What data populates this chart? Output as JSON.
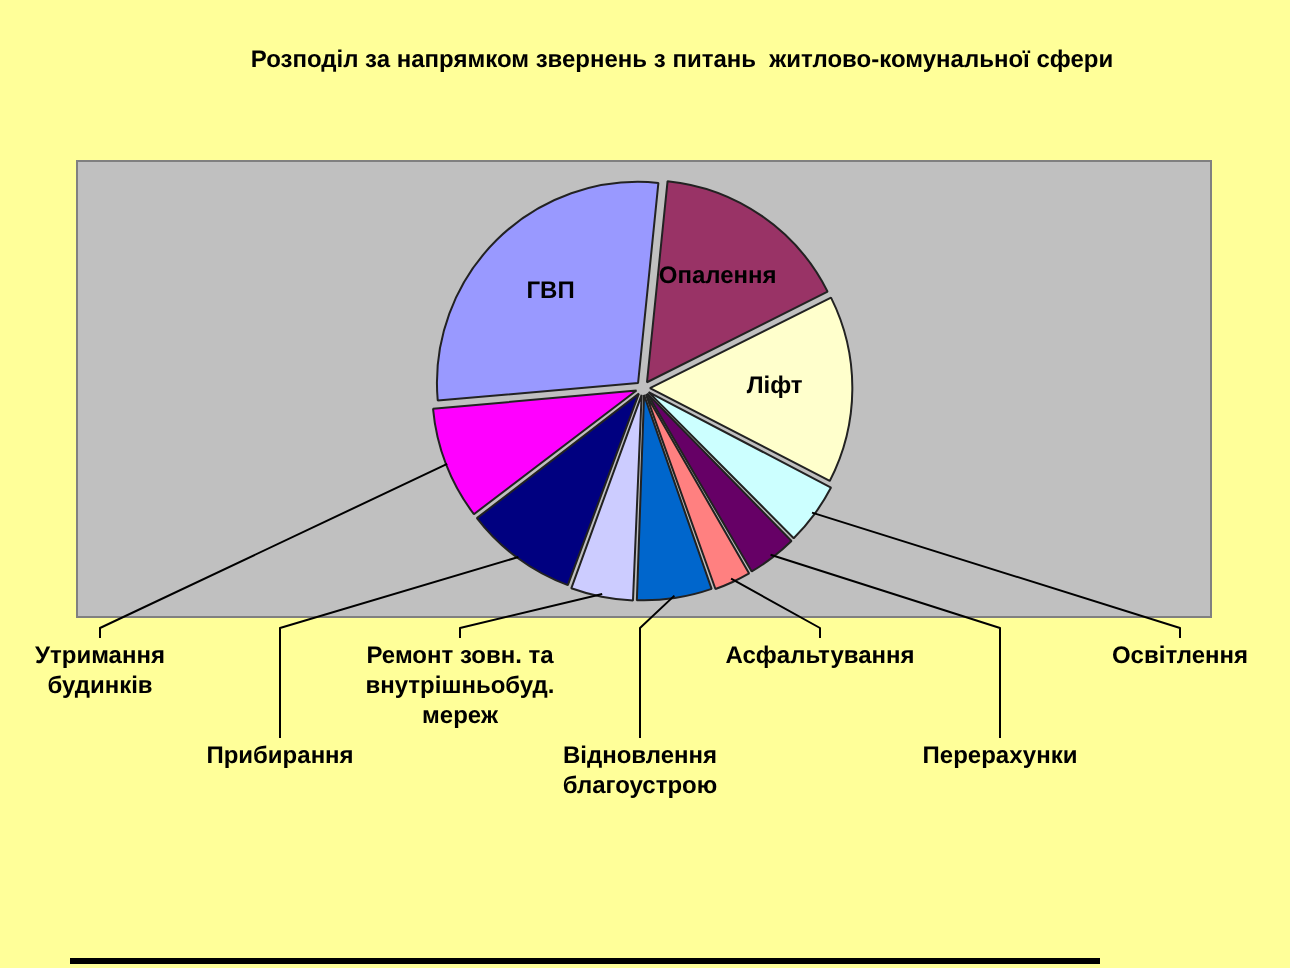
{
  "chart_data": {
    "type": "pie",
    "title": "Розподіл за напрямком звернень з питань  житлово-комунальної сфери",
    "categories": [
      "ГВП",
      "Опалення",
      "Ліфт",
      "Освітлення",
      "Перерахунки",
      "Асфальтування",
      "Відновлення благоустрою",
      "Ремонт зовн. та внутрішньобуд. мереж",
      "Прибирання",
      "Утримання будинків"
    ],
    "values": [
      28,
      16,
      15,
      5,
      4,
      3,
      6,
      5,
      9,
      9
    ],
    "colors": [
      "#9999ff",
      "#993366",
      "#ffffcc",
      "#ccffff",
      "#660066",
      "#ff8080",
      "#0066cc",
      "#ccccff",
      "#000080",
      "#ff00ff"
    ],
    "legend": false
  }
}
